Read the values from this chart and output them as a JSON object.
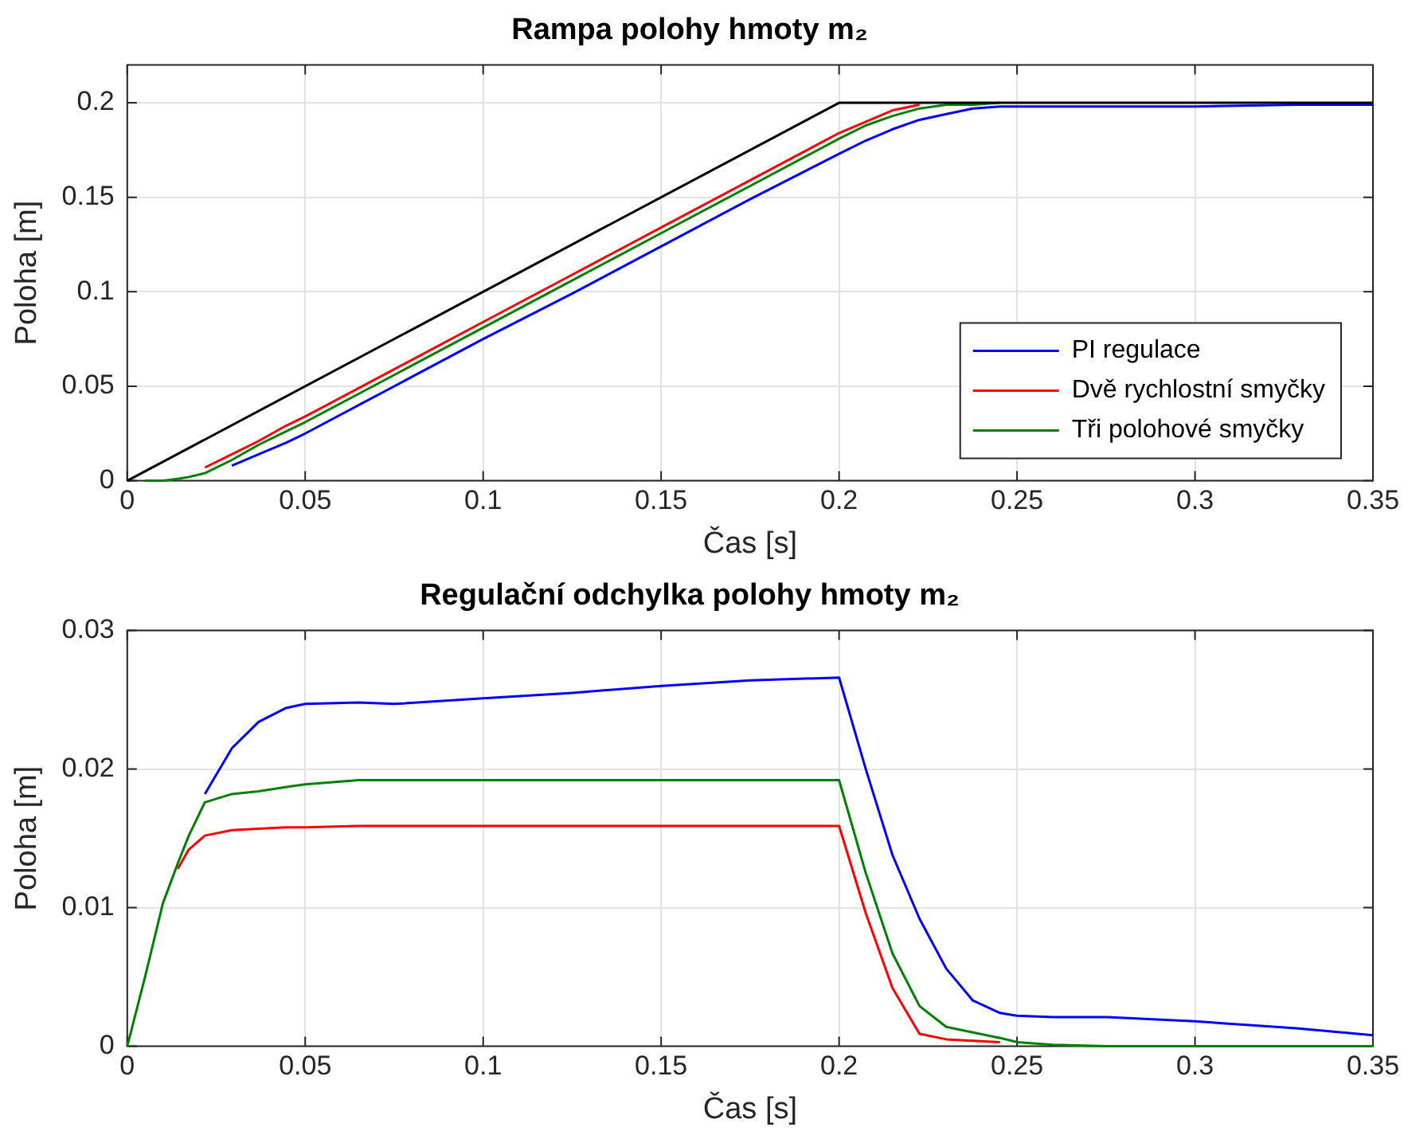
{
  "chart_data": [
    {
      "type": "line",
      "title": "Rampa polohy hmoty m₂",
      "xlabel": "Čas [s]",
      "ylabel": "Poloha [m]",
      "series": [
        {
          "name": "PI regulace",
          "color": "#0000ff",
          "x": [
            0.0294,
            0.0369,
            0.0445,
            0.05,
            0.065,
            0.075,
            0.1,
            0.125,
            0.15,
            0.175,
            0.2,
            0.2075,
            0.215,
            0.2226,
            0.2301,
            0.2376,
            0.2452,
            0.25,
            0.26,
            0.2753,
            0.3,
            0.3284,
            0.35
          ],
          "values": [
            0.008,
            0.014,
            0.02,
            0.025,
            0.04,
            0.05,
            0.075,
            0.099,
            0.124,
            0.149,
            0.173,
            0.18,
            0.186,
            0.191,
            0.194,
            0.197,
            0.198,
            0.198,
            0.198,
            0.198,
            0.198,
            0.199,
            0.199
          ]
        },
        {
          "name": "Dvě rychlostní smyčky",
          "color": "#ff0000",
          "x": [
            0.0218,
            0.0294,
            0.0369,
            0.0445,
            0.05,
            0.065,
            0.075,
            0.1,
            0.125,
            0.15,
            0.175,
            0.2,
            0.2075,
            0.215,
            0.2226
          ],
          "values": [
            0.007,
            0.014,
            0.021,
            0.029,
            0.034,
            0.049,
            0.059,
            0.084,
            0.109,
            0.134,
            0.159,
            0.184,
            0.19,
            0.196,
            0.199
          ]
        },
        {
          "name": "Tři polohové smyčky",
          "color": "#008000",
          "x": [
            0.005,
            0.01,
            0.0142,
            0.0173,
            0.0218,
            0.0294,
            0.0369,
            0.0445,
            0.05,
            0.065,
            0.075,
            0.1,
            0.125,
            0.15,
            0.175,
            0.2,
            0.2075,
            0.215,
            0.2226,
            0.2301,
            0.2376,
            0.2452
          ],
          "values": [
            0,
            0,
            0.001,
            0.002,
            0.004,
            0.011,
            0.019,
            0.026,
            0.031,
            0.046,
            0.056,
            0.081,
            0.106,
            0.131,
            0.156,
            0.181,
            0.188,
            0.193,
            0.197,
            0.199,
            0.199,
            0.2
          ]
        },
        {
          "color": "#000000",
          "x": [
            0,
            0.2,
            0.35
          ],
          "values": [
            0,
            0.2,
            0.2
          ]
        }
      ],
      "xlim": [
        0,
        0.35
      ],
      "xticks": [
        0,
        0.05,
        0.1,
        0.15,
        0.2,
        0.25,
        0.3,
        0.35
      ],
      "ylim": [
        0,
        0.22
      ],
      "yticks": [
        0,
        0.05,
        0.1,
        0.15,
        0.2
      ],
      "grid": true,
      "legend": "bottom right",
      "marker": "none",
      "line_style": "solid"
    },
    {
      "type": "line",
      "title": "Regulační odchylka polohy hmoty m₂",
      "xlabel": "Čas [s]",
      "ylabel": "Poloha [m]",
      "series": [
        {
          "color": "#0000ff",
          "x": [
            0.0218,
            0.0294,
            0.0369,
            0.0445,
            0.05,
            0.065,
            0.075,
            0.1,
            0.125,
            0.15,
            0.175,
            0.2,
            0.2075,
            0.215,
            0.2226,
            0.2301,
            0.2376,
            0.2452,
            0.25,
            0.26,
            0.2753,
            0.3,
            0.3284,
            0.35
          ],
          "values": [
            0.0182,
            0.0215,
            0.0234,
            0.0244,
            0.0247,
            0.0248,
            0.0247,
            0.0251,
            0.0255,
            0.026,
            0.0264,
            0.0266,
            0.02,
            0.0138,
            0.0092,
            0.0056,
            0.0033,
            0.0024,
            0.0022,
            0.0021,
            0.0021,
            0.0018,
            0.0013,
            0.0008
          ]
        },
        {
          "color": "#ff0000",
          "x": [
            0.0142,
            0.0173,
            0.0218,
            0.0294,
            0.0369,
            0.0445,
            0.05,
            0.065,
            0.075,
            0.1,
            0.125,
            0.15,
            0.175,
            0.2,
            0.2075,
            0.215,
            0.2226,
            0.2301,
            0.2376,
            0.2452
          ],
          "values": [
            0.0128,
            0.0142,
            0.0152,
            0.0156,
            0.0157,
            0.0158,
            0.0158,
            0.0159,
            0.0159,
            0.0159,
            0.0159,
            0.0159,
            0.0159,
            0.0159,
            0.0096,
            0.0042,
            0.0009,
            0.0005,
            0.0004,
            0.0003
          ]
        },
        {
          "color": "#008000",
          "x": [
            0,
            0.005,
            0.01,
            0.0142,
            0.0173,
            0.0218,
            0.0294,
            0.0369,
            0.0445,
            0.05,
            0.065,
            0.075,
            0.1,
            0.125,
            0.15,
            0.175,
            0.2,
            0.2075,
            0.215,
            0.2226,
            0.2301,
            0.2376,
            0.2452,
            0.25,
            0.26,
            0.2753,
            0.3,
            0.3284,
            0.35
          ],
          "values": [
            0,
            0.005,
            0.0103,
            0.0132,
            0.0152,
            0.0176,
            0.0182,
            0.0184,
            0.0187,
            0.0189,
            0.0192,
            0.0192,
            0.0192,
            0.0192,
            0.0192,
            0.0192,
            0.0192,
            0.0125,
            0.0067,
            0.0029,
            0.0014,
            0.001,
            0.0006,
            0.0003,
            0.0001,
            0,
            0,
            0,
            0
          ]
        }
      ],
      "xlim": [
        0,
        0.35
      ],
      "xticks": [
        0,
        0.05,
        0.1,
        0.15,
        0.2,
        0.25,
        0.3,
        0.35
      ],
      "ylim": [
        0,
        0.03
      ],
      "yticks": [
        0,
        0.01,
        0.02,
        0.03
      ],
      "grid": true,
      "marker": "none",
      "line_style": "solid"
    }
  ]
}
